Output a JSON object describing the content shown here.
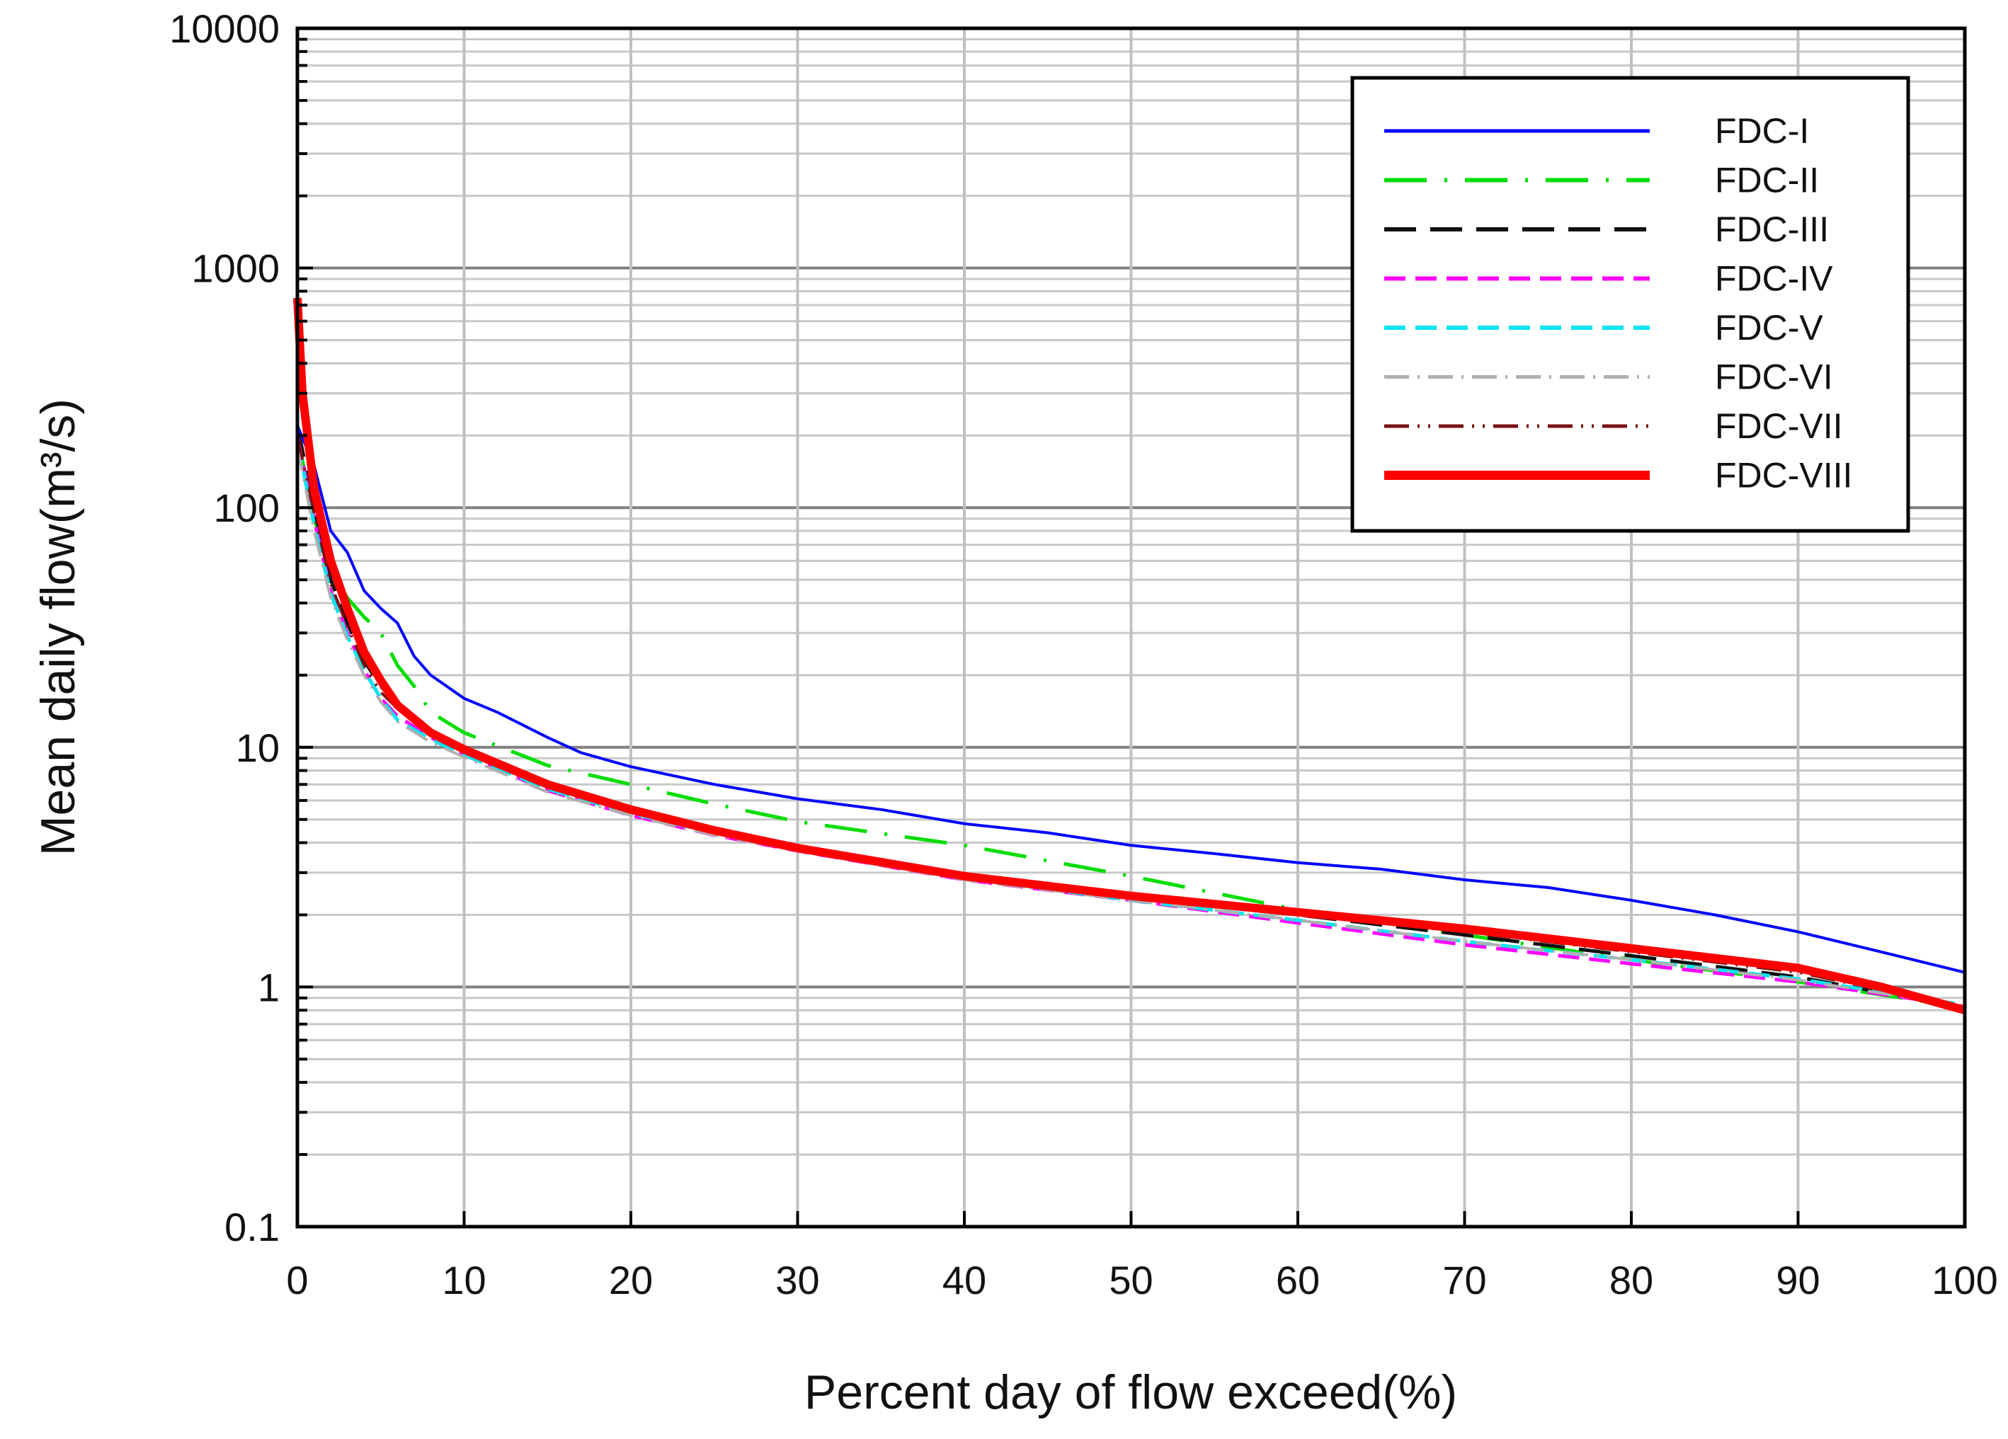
{
  "chart_data": {
    "type": "line",
    "title": "",
    "xlabel": "Percent day of flow exceed(%)",
    "ylabel": "Mean daily flow(m³/s)",
    "xlim": [
      0,
      100
    ],
    "ylim": [
      0.1,
      10000
    ],
    "yscale": "log",
    "grid": true,
    "legend_position": "top-right",
    "xticks": [
      "0",
      "10",
      "20",
      "30",
      "40",
      "50",
      "60",
      "70",
      "80",
      "90",
      "100"
    ],
    "yticks": [
      "0.1",
      "1",
      "10",
      "100",
      "1000",
      "10000"
    ],
    "series": [
      {
        "name": "FDC-I",
        "color": "#0000ff",
        "style": "solid",
        "x": [
          0,
          1,
          2,
          3,
          4,
          5,
          6,
          7,
          8,
          10,
          12,
          15,
          17,
          20,
          25,
          30,
          35,
          40,
          45,
          50,
          55,
          60,
          65,
          70,
          75,
          80,
          85,
          90,
          95,
          100
        ],
        "y": [
          220,
          150,
          80,
          65,
          45,
          38,
          33,
          24,
          20,
          16,
          14,
          11,
          9.5,
          8.3,
          7,
          6.1,
          5.5,
          4.8,
          4.4,
          3.9,
          3.6,
          3.3,
          3.1,
          2.8,
          2.6,
          2.3,
          2,
          1.7,
          1.4,
          1.15
        ]
      },
      {
        "name": "FDC-II",
        "color": "#00dd00",
        "style": "long-dash-dot",
        "x": [
          0,
          1,
          2,
          3,
          4,
          5,
          6,
          7,
          8,
          10,
          15,
          20,
          25,
          30,
          40,
          50,
          60,
          70,
          80,
          90,
          100
        ],
        "y": [
          200,
          90,
          55,
          42,
          35,
          30,
          22,
          18,
          14,
          11.5,
          8.4,
          7,
          5.8,
          4.9,
          3.9,
          2.9,
          2.1,
          1.65,
          1.3,
          1.05,
          0.82
        ]
      },
      {
        "name": "FDC-III",
        "color": "#111111",
        "style": "long-dash",
        "x": [
          0,
          1,
          2,
          3,
          4,
          5,
          6,
          8,
          10,
          15,
          20,
          25,
          30,
          40,
          50,
          60,
          70,
          80,
          90,
          100
        ],
        "y": [
          220,
          100,
          50,
          33,
          23,
          18,
          15,
          11.5,
          9.6,
          6.9,
          5.4,
          4.5,
          3.85,
          2.9,
          2.35,
          2.0,
          1.65,
          1.35,
          1.1,
          0.82
        ]
      },
      {
        "name": "FDC-IV",
        "color": "#ff00ff",
        "style": "dash",
        "x": [
          0,
          1,
          2,
          3,
          4,
          5,
          6,
          8,
          10,
          15,
          20,
          25,
          30,
          40,
          50,
          60,
          70,
          80,
          90,
          100
        ],
        "y": [
          200,
          90,
          45,
          30,
          21,
          16,
          13.5,
          11,
          9.3,
          6.6,
          5.2,
          4.3,
          3.7,
          2.8,
          2.3,
          1.85,
          1.5,
          1.25,
          1.05,
          0.83
        ]
      },
      {
        "name": "FDC-V",
        "color": "#00e5ee",
        "style": "dash",
        "x": [
          0,
          1,
          2,
          3,
          4,
          5,
          6,
          8,
          10,
          15,
          20,
          25,
          30,
          40,
          50,
          60,
          70,
          80,
          90,
          100
        ],
        "y": [
          190,
          85,
          44,
          29,
          21,
          16,
          13,
          10.8,
          9.3,
          6.7,
          5.3,
          4.4,
          3.75,
          2.85,
          2.3,
          1.9,
          1.55,
          1.3,
          1.08,
          0.84
        ]
      },
      {
        "name": "FDC-VI",
        "color": "#b0b0b0",
        "style": "dash-dot",
        "x": [
          0,
          1,
          2,
          3,
          4,
          5,
          6,
          8,
          10,
          15,
          20,
          25,
          30,
          40,
          50,
          60,
          70,
          80,
          90,
          100
        ],
        "y": [
          180,
          80,
          42,
          28,
          20,
          15.5,
          12.8,
          10.5,
          9.1,
          6.5,
          5.2,
          4.3,
          3.7,
          2.8,
          2.3,
          1.9,
          1.55,
          1.3,
          1.07,
          0.83
        ]
      },
      {
        "name": "FDC-VII",
        "color": "#7a1010",
        "style": "dash-dot-dot",
        "x": [
          0,
          1,
          2,
          3,
          4,
          5,
          6,
          8,
          10,
          15,
          20,
          25,
          30,
          40,
          50,
          60,
          70,
          80,
          90,
          100
        ],
        "y": [
          200,
          95,
          48,
          32,
          22,
          17,
          14.5,
          11.2,
          9.5,
          6.8,
          5.4,
          4.5,
          3.8,
          2.9,
          2.35,
          2.0,
          1.7,
          1.4,
          1.15,
          0.82
        ]
      },
      {
        "name": "FDC-VIII",
        "color": "#ff0000",
        "style": "thick-solid",
        "x": [
          0,
          0.3,
          1,
          2,
          3,
          4,
          5,
          6,
          8,
          10,
          15,
          20,
          25,
          30,
          40,
          50,
          60,
          70,
          80,
          90,
          95,
          100
        ],
        "y": [
          750,
          300,
          120,
          60,
          38,
          25,
          19,
          15,
          11.5,
          9.8,
          7,
          5.5,
          4.5,
          3.8,
          2.9,
          2.4,
          2.05,
          1.75,
          1.45,
          1.2,
          1.0,
          0.8
        ]
      }
    ]
  }
}
